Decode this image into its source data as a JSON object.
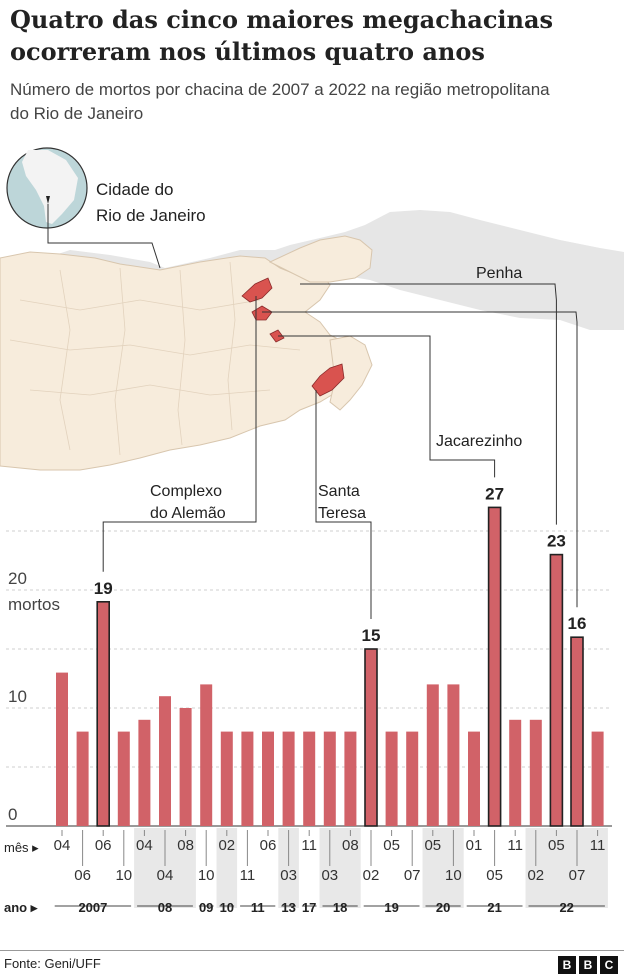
{
  "header": {
    "title": "Quatro das cinco maiores megachacinas ocorreram nos últimos quatro anos",
    "subtitle": "Número de mortos por chacina de 2007 a 2022 na região metropolitana do Rio de Janeiro"
  },
  "map": {
    "inset_label_line1": "Cidade do",
    "inset_label_line2": "Rio de Janeiro"
  },
  "footer": {
    "source": "Fonte: Geni/UFF",
    "logo_letters": [
      "B",
      "B",
      "C"
    ]
  },
  "colors": {
    "bar": "#d16268",
    "bar_highlight_stroke": "#222222",
    "grid": "#cfcfcf",
    "map_land": "#f7ecdc",
    "map_outside": "#e6e6e6",
    "map_highlight": "#d9534f",
    "year_band": "#e8e8e8"
  },
  "chart_data": {
    "type": "bar",
    "ylabel": "mortos",
    "ylim": [
      0,
      30
    ],
    "y_ticks": [
      0,
      10,
      20
    ],
    "row_labels": {
      "month": "mês",
      "year": "ano"
    },
    "values": [
      13,
      8,
      19,
      8,
      9,
      11,
      10,
      12,
      8,
      8,
      8,
      8,
      8,
      8,
      8,
      15,
      8,
      8,
      12,
      12,
      8,
      27,
      9,
      9,
      23,
      16,
      8
    ],
    "highlighted": [
      {
        "index": 2,
        "label": "19"
      },
      {
        "index": 15,
        "label": "15"
      },
      {
        "index": 21,
        "label": "27"
      },
      {
        "index": 24,
        "label": "23"
      },
      {
        "index": 25,
        "label": "16"
      }
    ],
    "months": [
      "04",
      "06",
      "06",
      "10",
      "04",
      "04",
      "08",
      "10",
      "02",
      "11",
      "06",
      "03",
      "11",
      "03",
      "08",
      "02",
      "05",
      "07",
      "05",
      "10",
      "01",
      "05",
      "11",
      "02",
      "05",
      "07",
      "11"
    ],
    "years": [
      {
        "label": "2007",
        "start": 0,
        "end": 3
      },
      {
        "label": "08",
        "start": 4,
        "end": 6
      },
      {
        "label": "09",
        "start": 7,
        "end": 7
      },
      {
        "label": "10",
        "start": 8,
        "end": 8
      },
      {
        "label": "11",
        "start": 9,
        "end": 10
      },
      {
        "label": "13",
        "start": 11,
        "end": 11
      },
      {
        "label": "17",
        "start": 12,
        "end": 12
      },
      {
        "label": "18",
        "start": 13,
        "end": 14
      },
      {
        "label": "19",
        "start": 15,
        "end": 17
      },
      {
        "label": "20",
        "start": 18,
        "end": 19
      },
      {
        "label": "21",
        "start": 20,
        "end": 22
      },
      {
        "label": "22",
        "start": 23,
        "end": 26
      }
    ],
    "annotations": [
      {
        "index": 2,
        "lines": [
          "Complexo",
          "do Alemão"
        ]
      },
      {
        "index": 15,
        "lines": [
          "Santa",
          "Teresa"
        ]
      },
      {
        "index": 21,
        "lines": [
          "Jacarezinho"
        ]
      },
      {
        "index": 24,
        "lines": [
          "Penha"
        ]
      }
    ]
  }
}
